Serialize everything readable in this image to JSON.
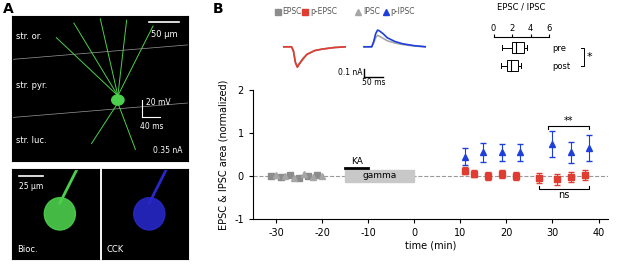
{
  "panel_a": {
    "label": "A",
    "main_image": {
      "color": "#4ccf4c",
      "scale": "50 µm",
      "layers": [
        "str. or.",
        "str. pyr.",
        "str. luc."
      ],
      "trace_scale_v": "20 mV",
      "trace_scale_t": "40 ms",
      "current": "0.35 nA"
    },
    "small_images": [
      {
        "label": "Bioc.",
        "scale": "25 µm",
        "color": "#4ccf4c"
      },
      {
        "label": "CCK",
        "color": "#2828c8"
      }
    ]
  },
  "chart_data": {
    "type": "scatter",
    "label": "B",
    "xlabel": "time (min)",
    "ylabel": "EPSC & IPSC area (normalized)",
    "xlim": [
      -35,
      42
    ],
    "xticks": [
      -30,
      -20,
      -10,
      0,
      10,
      20,
      30,
      40
    ],
    "ylim": [
      -1,
      2
    ],
    "yticks": [
      -1,
      0,
      1,
      2
    ],
    "reference_line": {
      "y": 0,
      "line_style": "dashed"
    },
    "application": {
      "label": "KA",
      "x": [
        -15,
        -10
      ]
    },
    "epoch": {
      "label": "gamma",
      "x": [
        -15,
        0
      ]
    },
    "series": [
      {
        "name": "EPSC",
        "color": "#8c8c8c",
        "marker": "square",
        "x": [
          -31,
          -29,
          -27,
          -25,
          -23,
          -21
        ],
        "values": [
          0.0,
          -0.03,
          0.02,
          -0.05,
          0.0,
          0.03
        ]
      },
      {
        "name": "IPSC",
        "color": "#a6a6a6",
        "marker": "triangle",
        "x": [
          -30,
          -28,
          -26,
          -24,
          -22,
          -20
        ],
        "values": [
          0.02,
          0.0,
          -0.04,
          0.05,
          -0.02,
          0.0
        ]
      },
      {
        "name": "p-EPSC",
        "color": "#e03c31",
        "marker": "square",
        "x": [
          11,
          13,
          16,
          19,
          22,
          27,
          31,
          34,
          37
        ],
        "values": [
          0.12,
          0.05,
          0.0,
          0.05,
          0.0,
          -0.05,
          -0.08,
          -0.02,
          0.02
        ],
        "errors": [
          0.08,
          0.08,
          0.1,
          0.1,
          0.1,
          0.12,
          0.12,
          0.12,
          0.12
        ]
      },
      {
        "name": "p-IPSC",
        "color": "#1f3fdc",
        "marker": "triangle",
        "x": [
          11,
          15,
          19,
          23,
          30,
          34,
          38
        ],
        "values": [
          0.45,
          0.55,
          0.55,
          0.55,
          0.75,
          0.55,
          0.65
        ],
        "errors": [
          0.2,
          0.22,
          0.2,
          0.2,
          0.3,
          0.25,
          0.3
        ]
      }
    ],
    "brackets": [
      {
        "text": "**",
        "x": [
          29,
          38
        ],
        "y": 1.15
      },
      {
        "text": "ns",
        "x": [
          27,
          38
        ],
        "y": -0.3
      }
    ],
    "trace_panels": [
      {
        "t": [
          0,
          10,
          20,
          25,
          30,
          35,
          40,
          50,
          60,
          80,
          100,
          130,
          160
        ],
        "series": [
          {
            "name": "EPSC",
            "values": [
              0,
              0,
              0,
              -0.05,
              -0.2,
              -0.26,
              -0.22,
              -0.15,
              -0.1,
              -0.05,
              -0.03,
              -0.01,
              0
            ]
          },
          {
            "name": "p-EPSC",
            "values": [
              0,
              0,
              0,
              -0.06,
              -0.21,
              -0.27,
              -0.23,
              -0.16,
              -0.1,
              -0.05,
              -0.03,
              -0.01,
              0
            ]
          }
        ]
      },
      {
        "t": [
          0,
          10,
          20,
          25,
          30,
          35,
          40,
          50,
          60,
          80,
          100,
          130,
          160
        ],
        "series": [
          {
            "name": "IPSC",
            "values": [
              0,
              0,
              0,
              0.05,
              0.12,
              0.15,
              0.14,
              0.11,
              0.08,
              0.05,
              0.03,
              0.01,
              0
            ]
          },
          {
            "name": "p-IPSC",
            "values": [
              0,
              0,
              0,
              0.07,
              0.17,
              0.22,
              0.21,
              0.17,
              0.12,
              0.07,
              0.04,
              0.015,
              0
            ]
          }
        ]
      }
    ],
    "scale_bar": {
      "time": 50,
      "time_label": "50 ms",
      "amplitude": 0.1,
      "amplitude_label": "0.1 nA"
    },
    "boxplot": {
      "title": "EPSC / IPSC",
      "xlim": [
        0,
        6
      ],
      "xticks": [
        0,
        2,
        4,
        6
      ],
      "groups": [
        {
          "name": "pre",
          "whisker_low": 0.9,
          "q1": 2.0,
          "median": 2.4,
          "q3": 3.3,
          "whisker_high": 3.6
        },
        {
          "name": "post",
          "whisker_low": 0.8,
          "q1": 1.4,
          "median": 1.9,
          "q3": 2.6,
          "whisker_high": 3.0
        }
      ],
      "significance": "*"
    }
  }
}
